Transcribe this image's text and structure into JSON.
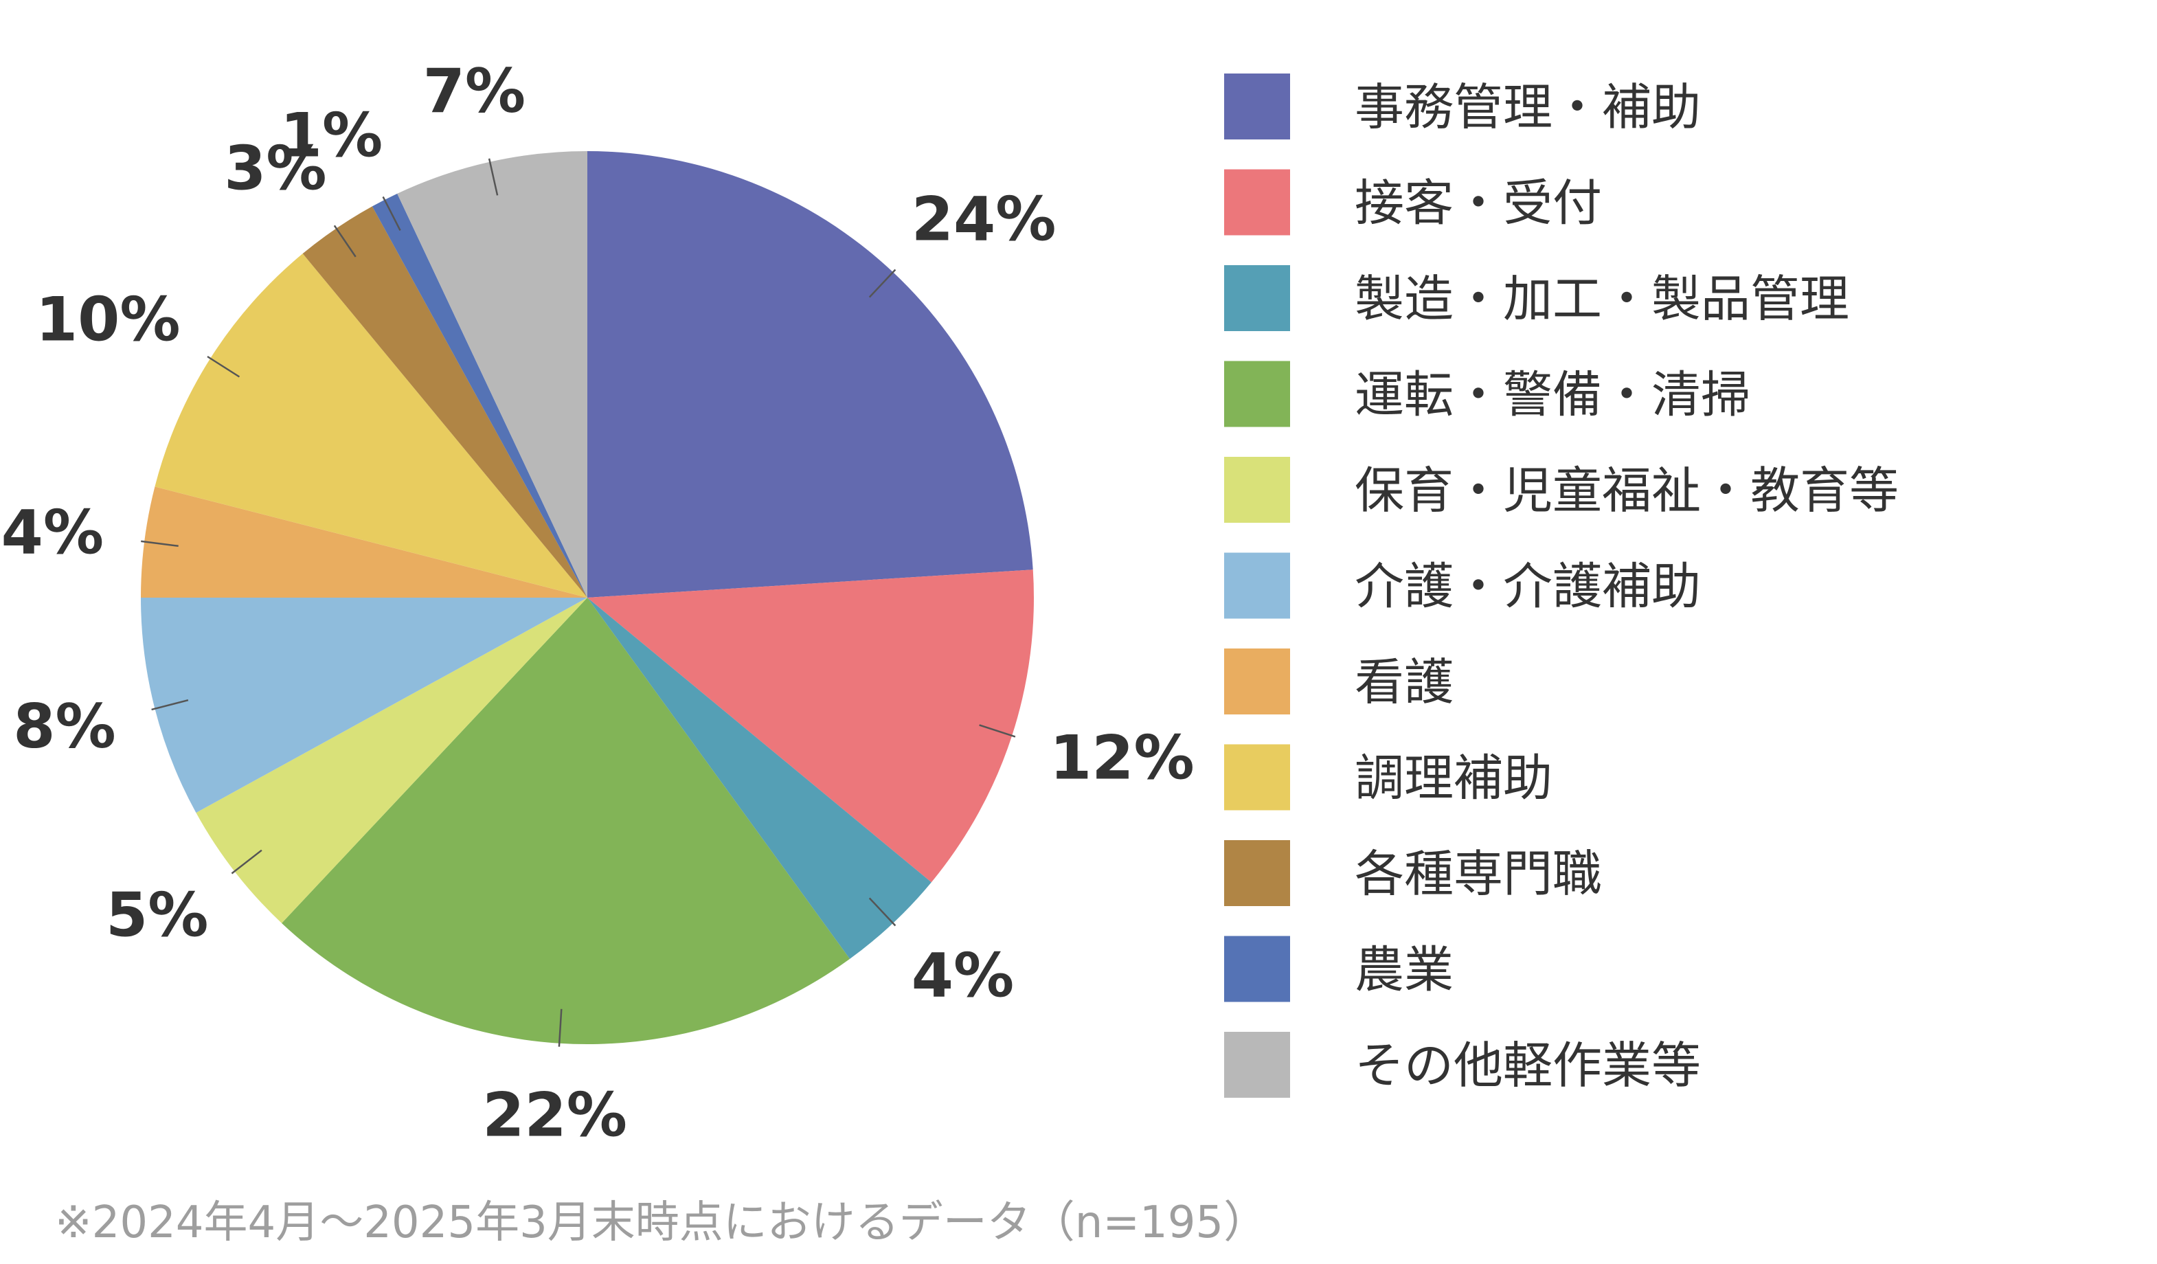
{
  "chart_data": {
    "type": "pie",
    "start": "12 o'clock",
    "direction": "clockwise",
    "legend_position": "right",
    "slices": [
      {
        "label": "事務管理・補助",
        "value": 24,
        "display": "24%",
        "color": "#636aaf"
      },
      {
        "label": "接客・受付",
        "value": 12,
        "display": "12%",
        "color": "#ec777b"
      },
      {
        "label": "製造・加工・製品管理",
        "value": 4,
        "display": "4%",
        "color": "#559fb5"
      },
      {
        "label": "運転・警備・清掃",
        "value": 22,
        "display": "22%",
        "color": "#82b457"
      },
      {
        "label": "保育・児童福祉・教育等",
        "value": 5,
        "display": "5%",
        "color": "#d9e179"
      },
      {
        "label": "介護・介護補助",
        "value": 8,
        "display": "8%",
        "color": "#8fbcdc"
      },
      {
        "label": "看護",
        "value": 4,
        "display": "4%",
        "color": "#e9ad60"
      },
      {
        "label": "調理補助",
        "value": 10,
        "display": "10%",
        "color": "#e8cc5f"
      },
      {
        "label": "各種専門職",
        "value": 3,
        "display": "3%",
        "color": "#b08545"
      },
      {
        "label": "農業",
        "value": 1,
        "display": "1%",
        "color": "#5573b5"
      },
      {
        "label": "その他軽作業等",
        "value": 7,
        "display": "7%",
        "color": "#b8b8b8"
      }
    ]
  },
  "footnote": "※2024年4月～2025年3月末時点におけるデータ（n=195）"
}
